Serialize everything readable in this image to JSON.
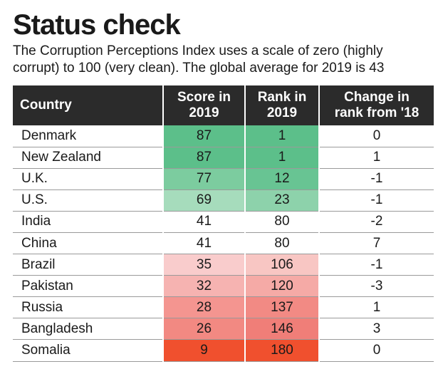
{
  "title": "Status check",
  "subtitle": "The Corruption Perceptions Index uses a scale of zero (highly corrupt) to 100 (very clean). The global average for 2019 is 43",
  "chart_data": {
    "type": "table",
    "columns": [
      "Country",
      "Score in 2019",
      "Rank in 2019",
      "Change in rank from '18"
    ],
    "header_lines": [
      [
        "Country"
      ],
      [
        "Score in",
        "2019"
      ],
      [
        "Rank in",
        "2019"
      ],
      [
        "Change in",
        "rank from '18"
      ]
    ],
    "rows": [
      {
        "country": "Denmark",
        "score": "87",
        "rank": "1",
        "change": "0",
        "score_color": "#5cbf8a",
        "rank_color": "#5cbf8a"
      },
      {
        "country": "New Zealand",
        "score": "87",
        "rank": "1",
        "change": "1",
        "score_color": "#5cbf8a",
        "rank_color": "#5cbf8a"
      },
      {
        "country": "U.K.",
        "score": "77",
        "rank": "12",
        "change": "-1",
        "score_color": "#7ccc9f",
        "rank_color": "#68c493"
      },
      {
        "country": "U.S.",
        "score": "69",
        "rank": "23",
        "change": "-1",
        "score_color": "#a6dcbc",
        "rank_color": "#8dd2ab"
      },
      {
        "country": "India",
        "score": "41",
        "rank": "80",
        "change": "-2",
        "score_color": "#ffffff",
        "rank_color": "#ffffff"
      },
      {
        "country": "China",
        "score": "41",
        "rank": "80",
        "change": "7",
        "score_color": "#ffffff",
        "rank_color": "#ffffff"
      },
      {
        "country": "Brazil",
        "score": "35",
        "rank": "106",
        "change": "-1",
        "score_color": "#f9cccc",
        "rank_color": "#f8c6c3"
      },
      {
        "country": "Pakistan",
        "score": "32",
        "rank": "120",
        "change": "-3",
        "score_color": "#f6b3b1",
        "rank_color": "#f5aaa6"
      },
      {
        "country": "Russia",
        "score": "28",
        "rank": "137",
        "change": "1",
        "score_color": "#f49590",
        "rank_color": "#f28a84"
      },
      {
        "country": "Bangladesh",
        "score": "26",
        "rank": "146",
        "change": "3",
        "score_color": "#f28982",
        "rank_color": "#f07e78"
      },
      {
        "country": "Somalia",
        "score": "9",
        "rank": "180",
        "change": "0",
        "score_color": "#f0502e",
        "rank_color": "#f0502e"
      }
    ]
  }
}
